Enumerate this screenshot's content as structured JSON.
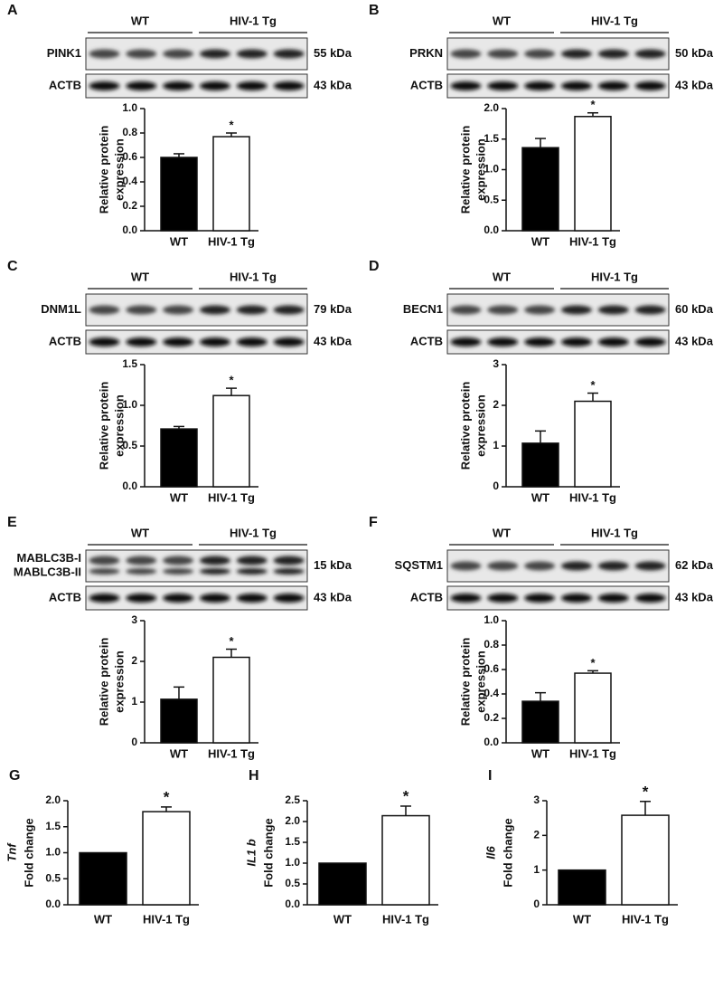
{
  "chart_data": [
    {
      "type": "bar",
      "panel": "A",
      "groups": [
        "WT",
        "HIV-1 Tg"
      ],
      "bands": [
        {
          "labels": [
            "PINK1"
          ],
          "size": "55 kDa"
        },
        {
          "labels": [
            "ACTB"
          ],
          "size": "43 kDa"
        }
      ],
      "ylabel": [
        "Relative protein",
        "expression"
      ],
      "categories": [
        "WT",
        "HIV-1 Tg"
      ],
      "values": [
        0.6,
        0.77
      ],
      "errors": [
        0.03,
        0.03
      ],
      "colors": [
        "#000000",
        "#ffffff"
      ],
      "annotation": "*",
      "ylim": [
        0,
        1
      ],
      "yticks": [
        {
          "value": 0,
          "label": "0.0"
        },
        0.2,
        0.4,
        0.6,
        0.8,
        {
          "value": 1,
          "label": "1.0"
        }
      ]
    },
    {
      "type": "bar",
      "panel": "B",
      "groups": [
        "WT",
        "HIV-1 Tg"
      ],
      "bands": [
        {
          "labels": [
            "PRKN"
          ],
          "size": "50 kDa"
        },
        {
          "labels": [
            "ACTB"
          ],
          "size": "43 kDa"
        }
      ],
      "ylabel": [
        "Relative protein",
        "expression"
      ],
      "categories": [
        "WT",
        "HIV-1 Tg"
      ],
      "values": [
        1.36,
        1.87
      ],
      "errors": [
        0.15,
        0.06
      ],
      "colors": [
        "#000000",
        "#ffffff"
      ],
      "annotation": "*",
      "ylim": [
        0,
        2
      ],
      "yticks": [
        {
          "value": 0,
          "label": "0.0"
        },
        0.5,
        {
          "value": 1,
          "label": "1.0"
        },
        1.5,
        {
          "value": 2,
          "label": "2.0"
        }
      ]
    },
    {
      "type": "bar",
      "panel": "C",
      "groups": [
        "WT",
        "HIV-1 Tg"
      ],
      "bands": [
        {
          "labels": [
            "DNM1L"
          ],
          "size": "79 kDa"
        },
        {
          "labels": [
            "ACTB"
          ],
          "size": "43 kDa"
        }
      ],
      "ylabel": [
        "Relative protein",
        "expression"
      ],
      "categories": [
        "WT",
        "HIV-1 Tg"
      ],
      "values": [
        0.71,
        1.12
      ],
      "errors": [
        0.03,
        0.09
      ],
      "colors": [
        "#000000",
        "#ffffff"
      ],
      "annotation": "*",
      "ylim": [
        0,
        1.5
      ],
      "yticks": [
        {
          "value": 0,
          "label": "0.0"
        },
        0.5,
        {
          "value": 1,
          "label": "1.0"
        },
        1.5
      ]
    },
    {
      "type": "bar",
      "panel": "D",
      "groups": [
        "WT",
        "HIV-1 Tg"
      ],
      "bands": [
        {
          "labels": [
            "BECN1"
          ],
          "size": "60 kDa"
        },
        {
          "labels": [
            "ACTB"
          ],
          "size": "43 kDa"
        }
      ],
      "ylabel": [
        "Relative protein",
        "expression"
      ],
      "categories": [
        "WT",
        "HIV-1 Tg"
      ],
      "values": [
        1.07,
        2.1
      ],
      "errors": [
        0.3,
        0.2
      ],
      "colors": [
        "#000000",
        "#ffffff"
      ],
      "annotation": "*",
      "ylim": [
        0,
        3
      ],
      "yticks": [
        0,
        1,
        2,
        3
      ]
    },
    {
      "type": "bar",
      "panel": "E",
      "groups": [
        "WT",
        "HIV-1 Tg"
      ],
      "bands": [
        {
          "labels": [
            "MABLC3B-I",
            "MABLC3B-II"
          ],
          "size": "15 kDa"
        },
        {
          "labels": [
            "ACTB"
          ],
          "size": "43 kDa"
        }
      ],
      "ylabel": [
        "Relative protein",
        "expression"
      ],
      "categories": [
        "WT",
        "HIV-1 Tg"
      ],
      "values": [
        1.07,
        2.1
      ],
      "errors": [
        0.3,
        0.2
      ],
      "colors": [
        "#000000",
        "#ffffff"
      ],
      "annotation": "*",
      "ylim": [
        0,
        3
      ],
      "yticks": [
        0,
        1,
        2,
        3
      ]
    },
    {
      "type": "bar",
      "panel": "F",
      "groups": [
        "WT",
        "HIV-1 Tg"
      ],
      "bands": [
        {
          "labels": [
            "SQSTM1"
          ],
          "size": "62 kDa"
        },
        {
          "labels": [
            "ACTB"
          ],
          "size": "43 kDa"
        }
      ],
      "ylabel": [
        "Relative protein",
        "expression"
      ],
      "categories": [
        "WT",
        "HIV-1 Tg"
      ],
      "values": [
        0.34,
        0.57
      ],
      "errors": [
        0.07,
        0.02
      ],
      "colors": [
        "#000000",
        "#ffffff"
      ],
      "annotation": "*",
      "ylim": [
        0,
        1
      ],
      "yticks": [
        {
          "value": 0,
          "label": "0.0"
        },
        0.2,
        0.4,
        0.6,
        0.8,
        {
          "value": 1,
          "label": "1.0"
        }
      ]
    },
    {
      "type": "bar",
      "panel": "G",
      "ylabel": [
        "Tnf",
        "Fold change"
      ],
      "categories": [
        "WT",
        "HIV-1 Tg"
      ],
      "values": [
        1.0,
        1.79
      ],
      "errors": [
        null,
        0.09
      ],
      "colors": [
        "#000000",
        "#ffffff"
      ],
      "annotation": "*",
      "ylim": [
        0,
        2
      ],
      "yticks": [
        {
          "value": 0,
          "label": "0.0"
        },
        0.5,
        {
          "value": 1,
          "label": "1.0"
        },
        1.5,
        {
          "value": 2,
          "label": "2.0"
        }
      ]
    },
    {
      "type": "bar",
      "panel": "H",
      "ylabel": [
        "IL1 b",
        "Fold change"
      ],
      "categories": [
        "WT",
        "HIV-1 Tg"
      ],
      "values": [
        1.0,
        2.14
      ],
      "errors": [
        null,
        0.23
      ],
      "colors": [
        "#000000",
        "#ffffff"
      ],
      "annotation": "*",
      "ylim": [
        0,
        2.5
      ],
      "yticks": [
        {
          "value": 0,
          "label": "0.0"
        },
        0.5,
        {
          "value": 1,
          "label": "1.0"
        },
        1.5,
        {
          "value": 2,
          "label": "2.0"
        },
        2.5
      ]
    },
    {
      "type": "bar",
      "panel": "I",
      "ylabel": [
        "Il6",
        "Fold change"
      ],
      "categories": [
        "WT",
        "HIV-1 Tg"
      ],
      "values": [
        1.0,
        2.58
      ],
      "errors": [
        null,
        0.4
      ],
      "colors": [
        "#000000",
        "#ffffff"
      ],
      "annotation": "*",
      "ylim": [
        0,
        3
      ],
      "yticks": [
        0,
        1,
        2,
        3
      ]
    }
  ]
}
